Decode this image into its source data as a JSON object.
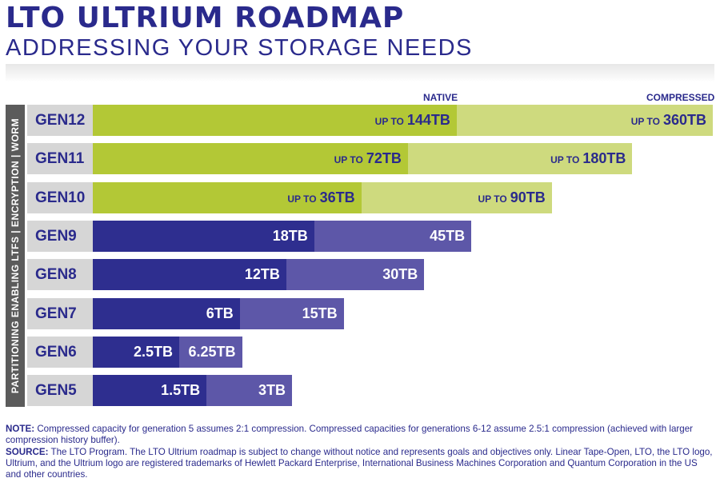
{
  "header": {
    "title": "LTO ULTRIUM ROADMAP",
    "subtitle": "ADDRESSING YOUR STORAGE NEEDS"
  },
  "legend": {
    "native": "NATIVE",
    "compressed": "COMPRESSED"
  },
  "sidebar_text": "PARTITIONING ENABLING LTFS  |  ENCRYPTION  |  WORM",
  "chart_data": {
    "type": "bar",
    "orientation": "horizontal",
    "stacked": "overlay",
    "unit": "TB",
    "categories": [
      "GEN12",
      "GEN11",
      "GEN10",
      "GEN9",
      "GEN8",
      "GEN7",
      "GEN6",
      "GEN5"
    ],
    "series": [
      {
        "name": "NATIVE",
        "values": [
          144,
          72,
          36,
          18,
          12,
          6,
          2.5,
          1.5
        ]
      },
      {
        "name": "COMPRESSED",
        "values": [
          360,
          180,
          90,
          45,
          30,
          15,
          6.25,
          3
        ]
      }
    ],
    "native_labels": [
      "144TB",
      "72TB",
      "36TB",
      "18TB",
      "12TB",
      "6TB",
      "2.5TB",
      "1.5TB"
    ],
    "compressed_labels": [
      "360TB",
      "180TB",
      "90TB",
      "45TB",
      "30TB",
      "15TB",
      "6.25TB",
      "3TB"
    ],
    "label_prefix": [
      "UP TO",
      "UP TO",
      "UP TO",
      "",
      "",
      "",
      "",
      ""
    ],
    "row_group": [
      "future",
      "future",
      "future",
      "current",
      "current",
      "current",
      "current",
      "current"
    ],
    "colors": {
      "future_native": "#b3c836",
      "future_compressed": "#ceda7e",
      "current_native": "#2e2e8f",
      "current_compressed": "#5d57a8"
    }
  },
  "footnote": {
    "note_label": "NOTE:",
    "note_text": "Compressed capacity for generation 5 assumes 2:1 compression. Compressed capacities for generations 6-12 assume 2.5:1 compression (achieved with larger compression history buffer).",
    "source_label": "SOURCE:",
    "source_text": "The LTO Program. The LTO Ultrium roadmap is subject to change without notice and represents goals and objectives only. Linear Tape-Open, LTO, the LTO logo, Ultrium, and the Ultrium logo are registered trademarks of Hewlett Packard Enterprise, International Business Machines Corporation and Quantum Corporation in the US and other countries."
  }
}
